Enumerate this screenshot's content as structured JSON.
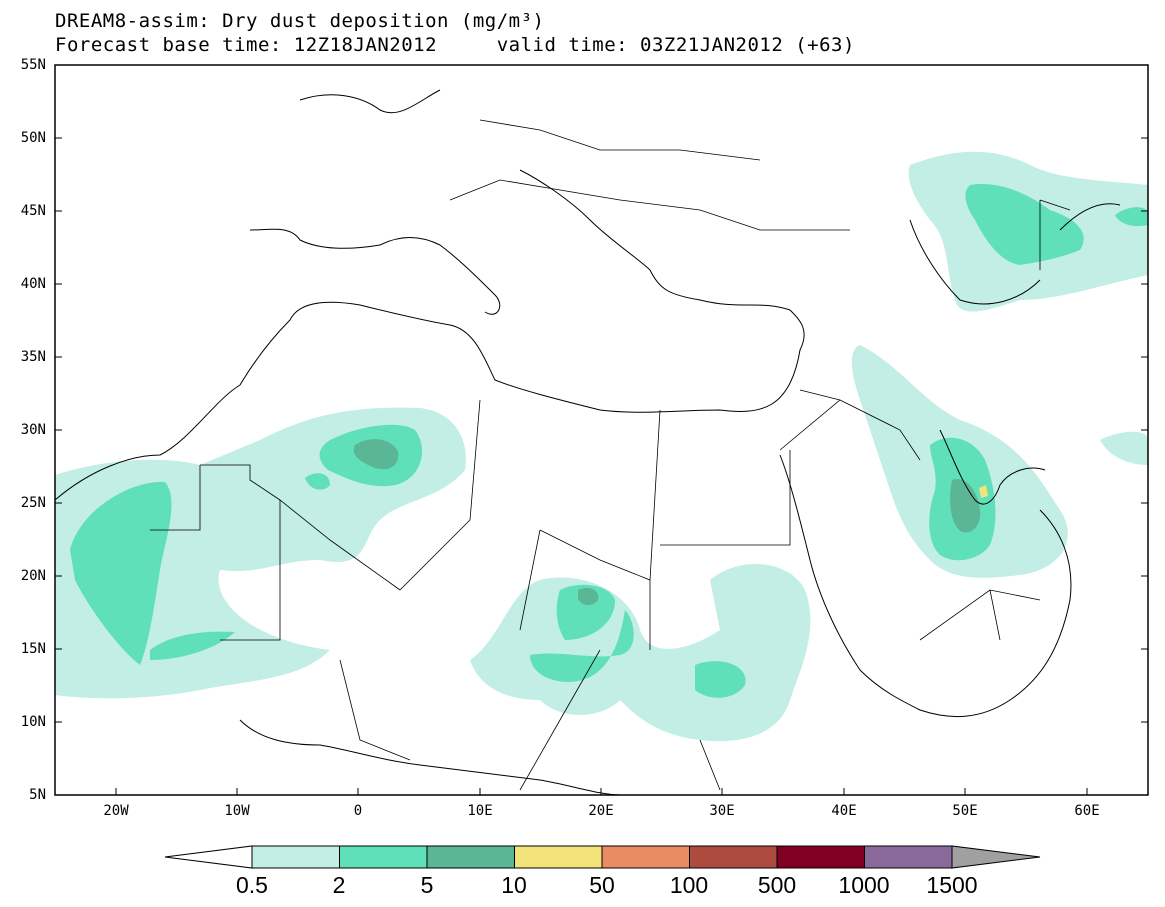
{
  "title_line1": "DREAM8-assim: Dry dust deposition (mg/m³)",
  "title_line2": "Forecast base time: 12Z18JAN2012     valid time: 03Z21JAN2012 (+63)",
  "lat_labels": [
    "55N",
    "50N",
    "45N",
    "40N",
    "35N",
    "30N",
    "25N",
    "20N",
    "15N",
    "10N",
    "5N"
  ],
  "lon_labels": [
    "20W",
    "10W",
    "0",
    "10E",
    "20E",
    "30E",
    "40E",
    "50E",
    "60E"
  ],
  "colorbar": {
    "labels": [
      "0.5",
      "2",
      "5",
      "10",
      "50",
      "100",
      "500",
      "1000",
      "1500"
    ],
    "colors": [
      "#c2eee6",
      "#5fe0b8",
      "#5ab695",
      "#f3e47a",
      "#ea8c63",
      "#ae4b3f",
      "#800024",
      "#8a6a9c",
      "#a0a0a0"
    ]
  },
  "colors": {
    "level_0_5": "#c2eee6",
    "level_2": "#5fe0b8",
    "level_5": "#5ab695",
    "level_10": "#f3e47a"
  }
}
